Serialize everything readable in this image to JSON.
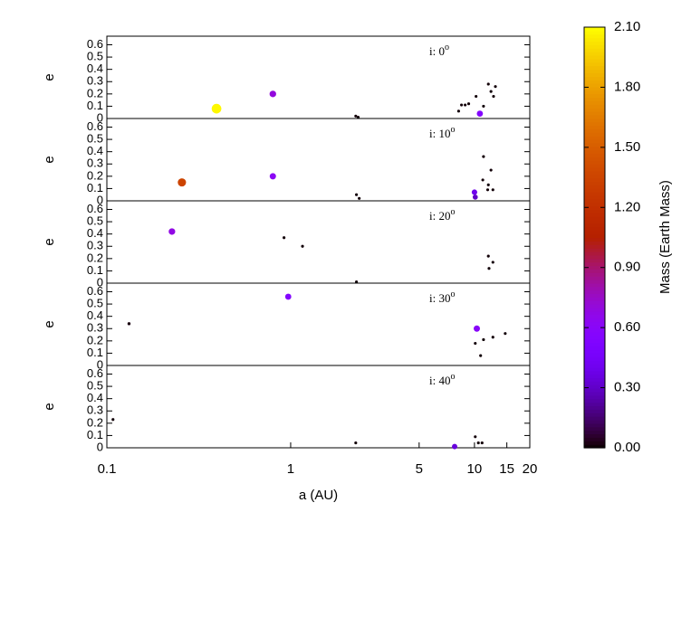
{
  "chart_data": [
    {
      "type": "scatter",
      "ylabel": "e",
      "annotation": "i: 0",
      "annotation_sup": "o",
      "xlim": [
        0.1,
        20
      ],
      "ylim": [
        0,
        0.67
      ],
      "yticks": [
        0,
        0.1,
        0.2,
        0.3,
        0.4,
        0.5,
        0.6
      ],
      "log_x": true,
      "x": [
        0.395,
        0.8,
        2.26,
        2.33,
        8.2,
        8.5,
        8.9,
        9.3,
        10.2,
        11.9,
        11.2,
        12.3,
        12.7,
        13.0,
        10.7
      ],
      "values": [
        0.08,
        0.2,
        0.02,
        0.01,
        0.06,
        0.11,
        0.11,
        0.12,
        0.18,
        0.28,
        0.1,
        0.22,
        0.18,
        0.26,
        0.04
      ],
      "mass": [
        2.08,
        0.7,
        0.01,
        0.01,
        0.01,
        0.01,
        0.01,
        0.01,
        0.01,
        0.01,
        0.01,
        0.01,
        0.01,
        0.01,
        0.55
      ]
    },
    {
      "type": "scatter",
      "ylabel": "e",
      "annotation": "i: 10",
      "annotation_sup": "o",
      "xlim": [
        0.1,
        20
      ],
      "ylim": [
        0,
        0.67
      ],
      "yticks": [
        0,
        0.1,
        0.2,
        0.3,
        0.4,
        0.5,
        0.6
      ],
      "log_x": true,
      "x": [
        0.256,
        0.8,
        2.28,
        2.36,
        10.0,
        10.1,
        11.2,
        11.1,
        11.9,
        12.3,
        11.8,
        12.6
      ],
      "values": [
        0.15,
        0.2,
        0.05,
        0.02,
        0.07,
        0.03,
        0.36,
        0.17,
        0.13,
        0.25,
        0.09,
        0.09
      ],
      "mass": [
        1.35,
        0.62,
        0.01,
        0.01,
        0.4,
        0.3,
        0.01,
        0.01,
        0.01,
        0.01,
        0.01,
        0.01
      ]
    },
    {
      "type": "scatter",
      "ylabel": "e",
      "annotation": "i: 20",
      "annotation_sup": "o",
      "xlim": [
        0.1,
        20
      ],
      "ylim": [
        0,
        0.67
      ],
      "yticks": [
        0,
        0.1,
        0.2,
        0.3,
        0.4,
        0.5,
        0.6
      ],
      "log_x": true,
      "x": [
        0.226,
        0.92,
        1.16,
        2.28,
        11.9,
        12.6,
        12.0
      ],
      "values": [
        0.42,
        0.37,
        0.3,
        0.01,
        0.22,
        0.17,
        0.12
      ],
      "mass": [
        0.68,
        0.01,
        0.01,
        0.01,
        0.01,
        0.01,
        0.01
      ]
    },
    {
      "type": "scatter",
      "ylabel": "e",
      "annotation": "i: 30",
      "annotation_sup": "o",
      "xlim": [
        0.1,
        20
      ],
      "ylim": [
        0,
        0.67
      ],
      "yticks": [
        0,
        0.1,
        0.2,
        0.3,
        0.4,
        0.5,
        0.6
      ],
      "log_x": true,
      "x": [
        0.132,
        0.97,
        10.3,
        10.1,
        11.2,
        12.6,
        14.7,
        10.8
      ],
      "values": [
        0.34,
        0.56,
        0.3,
        0.18,
        0.21,
        0.23,
        0.26,
        0.08
      ],
      "mass": [
        0.02,
        0.55,
        0.6,
        0.01,
        0.01,
        0.01,
        0.01,
        0.01
      ]
    },
    {
      "type": "scatter",
      "ylabel": "e",
      "annotation": "i: 40",
      "annotation_sup": "o",
      "xlim": [
        0.1,
        20
      ],
      "ylim": [
        0,
        0.67
      ],
      "yticks": [
        0,
        0.1,
        0.2,
        0.3,
        0.4,
        0.5,
        0.6
      ],
      "log_x": true,
      "xlabel": "a (AU)",
      "xticks": [
        0.1,
        1,
        5,
        10,
        15,
        20
      ],
      "x": [
        0.108,
        2.26,
        7.8,
        10.1,
        10.5,
        11.0
      ],
      "values": [
        0.23,
        0.04,
        0.01,
        0.09,
        0.04,
        0.04
      ],
      "mass": [
        0.01,
        0.01,
        0.35,
        0.01,
        0.01,
        0.01
      ]
    }
  ],
  "colorbar": {
    "label": "Mass (Earth Mass)",
    "clim": [
      0,
      2.1
    ],
    "colormap": "gnuplot",
    "ticks": [
      {
        "value": 0,
        "label": "0.00"
      },
      {
        "value": 0.3,
        "label": "0.30"
      },
      {
        "value": 0.6,
        "label": "0.60"
      },
      {
        "value": 0.9,
        "label": "0.90"
      },
      {
        "value": 1.2,
        "label": "1.20"
      },
      {
        "value": 1.5,
        "label": "1.50"
      },
      {
        "value": 1.8,
        "label": "1.80"
      },
      {
        "value": 2.1,
        "label": "2.10"
      }
    ]
  }
}
